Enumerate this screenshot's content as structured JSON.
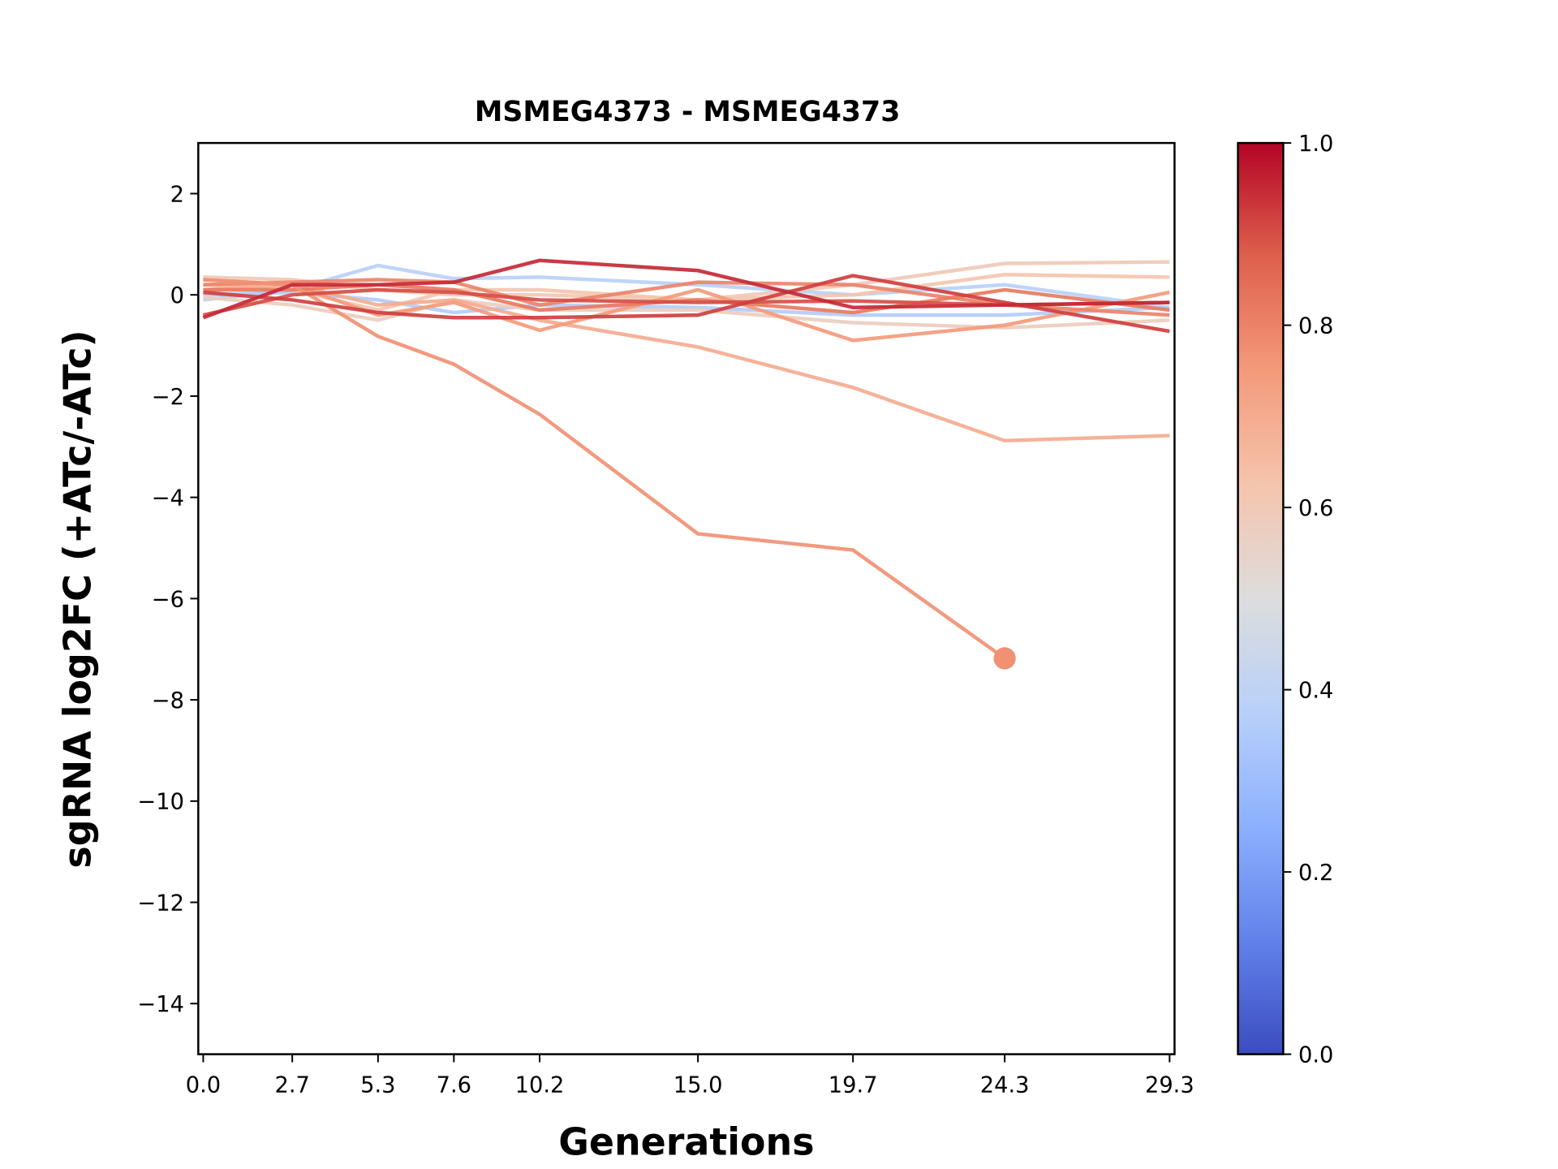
{
  "chart_data": {
    "type": "line",
    "title": "MSMEG4373 - MSMEG4373",
    "xlabel": "Generations",
    "ylabel": "sgRNA log2FC (+ATc/-ATc)",
    "x": [
      0.0,
      2.7,
      5.3,
      7.6,
      10.2,
      15.0,
      19.7,
      24.3,
      29.3
    ],
    "xtick_labels": [
      "0.0",
      "2.7",
      "5.3",
      "7.6",
      "10.2",
      "15.0",
      "19.7",
      "24.3",
      "29.3"
    ],
    "xlim": [
      -0.15,
      29.45
    ],
    "ylim": [
      -15,
      3
    ],
    "yticks": [
      2,
      0,
      -2,
      -4,
      -6,
      -8,
      -10,
      -12,
      -14
    ],
    "ytick_labels": [
      "2",
      "0",
      "−2",
      "−4",
      "−6",
      "−8",
      "−10",
      "−12",
      "−14"
    ],
    "grid": false,
    "colorbar": {
      "colormap": "coolwarm",
      "range": [
        0,
        1
      ],
      "ticks": [
        "0.0",
        "0.2",
        "0.4",
        "0.6",
        "0.8",
        "1.0"
      ],
      "stops": [
        "#3b4cc0",
        "#6282ea",
        "#8db0fe",
        "#b8d0f9",
        "#dddddd",
        "#f5c4ad",
        "#f49a7b",
        "#de604d",
        "#b40426"
      ]
    },
    "series": [
      {
        "color_value": 0.38,
        "values": [
          -0.1,
          0.1,
          0.58,
          0.32,
          0.35,
          0.2,
          0.0,
          0.2,
          -0.25
        ]
      },
      {
        "color_value": 0.36,
        "values": [
          0.0,
          0.05,
          -0.1,
          -0.35,
          -0.2,
          -0.25,
          -0.4,
          -0.4,
          -0.25
        ]
      },
      {
        "color_value": 0.6,
        "values": [
          0.35,
          0.3,
          0.1,
          0.0,
          0.0,
          -0.1,
          0.2,
          0.62,
          0.65
        ]
      },
      {
        "color_value": 0.58,
        "values": [
          -0.05,
          -0.2,
          -0.5,
          -0.1,
          -0.3,
          -0.3,
          -0.55,
          -0.65,
          -0.5
        ]
      },
      {
        "color_value": 0.62,
        "values": [
          0.2,
          0.1,
          -0.3,
          0.1,
          0.1,
          -0.1,
          0.0,
          0.4,
          0.35
        ]
      },
      {
        "color_value": 0.7,
        "values": [
          0.1,
          0.2,
          -0.2,
          -0.1,
          -0.5,
          -1.03,
          -1.83,
          -2.88,
          -2.78
        ]
      },
      {
        "color_value": 0.75,
        "values": [
          0.3,
          0.2,
          -0.4,
          -0.15,
          -0.7,
          0.1,
          -0.9,
          -0.6,
          0.05
        ]
      },
      {
        "color_value": 0.8,
        "values": [
          0.2,
          0.25,
          0.3,
          0.25,
          -0.2,
          0.25,
          0.2,
          -0.2,
          -0.4
        ]
      },
      {
        "color_value": 0.82,
        "values": [
          0.1,
          0.1,
          0.2,
          0.1,
          -0.3,
          -0.1,
          -0.35,
          0.1,
          -0.3
        ]
      },
      {
        "color_value": 0.77,
        "values": [
          0.3,
          0.2,
          -0.82,
          -1.37,
          -2.36,
          -4.72,
          -5.04,
          -7.18,
          null
        ],
        "end_marker": true
      },
      {
        "color_value": 0.9,
        "values": [
          -0.4,
          0.0,
          0.1,
          0.05,
          -0.1,
          -0.15,
          -0.12,
          -0.2,
          -0.15
        ]
      },
      {
        "color_value": 0.92,
        "values": [
          0.05,
          -0.1,
          -0.35,
          -0.45,
          -0.45,
          -0.4,
          0.38,
          -0.15,
          -0.72
        ]
      },
      {
        "color_value": 0.95,
        "values": [
          -0.45,
          0.2,
          0.2,
          0.25,
          0.68,
          0.48,
          -0.25,
          -0.2,
          -0.15
        ]
      }
    ]
  }
}
